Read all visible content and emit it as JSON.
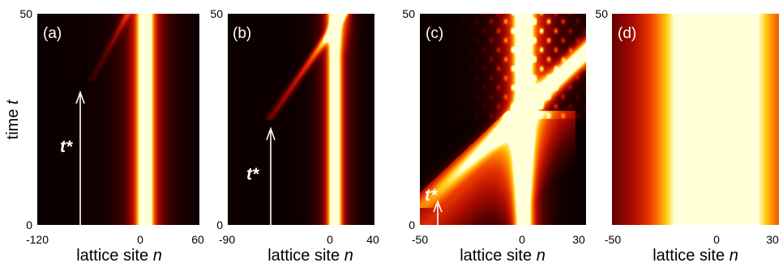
{
  "chart_data": [
    {
      "type": "heatmap",
      "label": "(a)",
      "xlabel": "lattice site",
      "xlabel_var": "n",
      "ylabel": "time",
      "ylabel_var": "t",
      "xlim": [
        -120,
        60
      ],
      "ylim": [
        0,
        50
      ],
      "xticks": [
        "-120",
        "0",
        "60"
      ],
      "yticks": [
        "0",
        "50"
      ],
      "annotation": "t*",
      "t_star": 34,
      "n_star": -60,
      "soliton_center": 0,
      "soliton_width": 6,
      "branch": {
        "n_start": -60,
        "t_start": 34,
        "n_end": -20,
        "t_end": 50,
        "strength": 0.35
      },
      "pattern": "stable"
    },
    {
      "type": "heatmap",
      "label": "(b)",
      "xlabel": "lattice site",
      "xlabel_var": "n",
      "xlim": [
        -90,
        40
      ],
      "ylim": [
        0,
        50
      ],
      "xticks": [
        "-90",
        "0",
        "40"
      ],
      "yticks": [
        "0",
        "50"
      ],
      "annotation": "t*",
      "t_star": 25,
      "n_star": -53,
      "soliton_center": 5,
      "soliton_width": 4,
      "branch": {
        "n_start": -53,
        "t_start": 25,
        "n_end": 12,
        "t_end": 50,
        "strength": 0.8
      },
      "pattern": "collision"
    },
    {
      "type": "heatmap",
      "label": "(c)",
      "xlabel": "lattice site",
      "xlabel_var": "n",
      "xlim": [
        -50,
        30
      ],
      "ylim": [
        0,
        50
      ],
      "xticks": [
        "-50",
        "0",
        "30"
      ],
      "yticks": [
        "0",
        "50"
      ],
      "annotation": "t*",
      "t_star": 4,
      "n_star": -41,
      "soliton_center": 0,
      "soliton_width": 3,
      "branch": {
        "n_start": -50,
        "t_start": 4,
        "n_end": 0,
        "t_end": 27,
        "strength": 1.0
      },
      "pattern": "interference"
    },
    {
      "type": "heatmap",
      "label": "(d)",
      "xlabel": "lattice site",
      "xlabel_var": "n",
      "xlim": [
        -50,
        30
      ],
      "ylim": [
        0,
        50
      ],
      "xticks": [
        "-50",
        "0",
        "30"
      ],
      "yticks": [
        "50"
      ],
      "soliton_center": 0,
      "soliton_width": 18,
      "pattern": "uniform"
    }
  ]
}
